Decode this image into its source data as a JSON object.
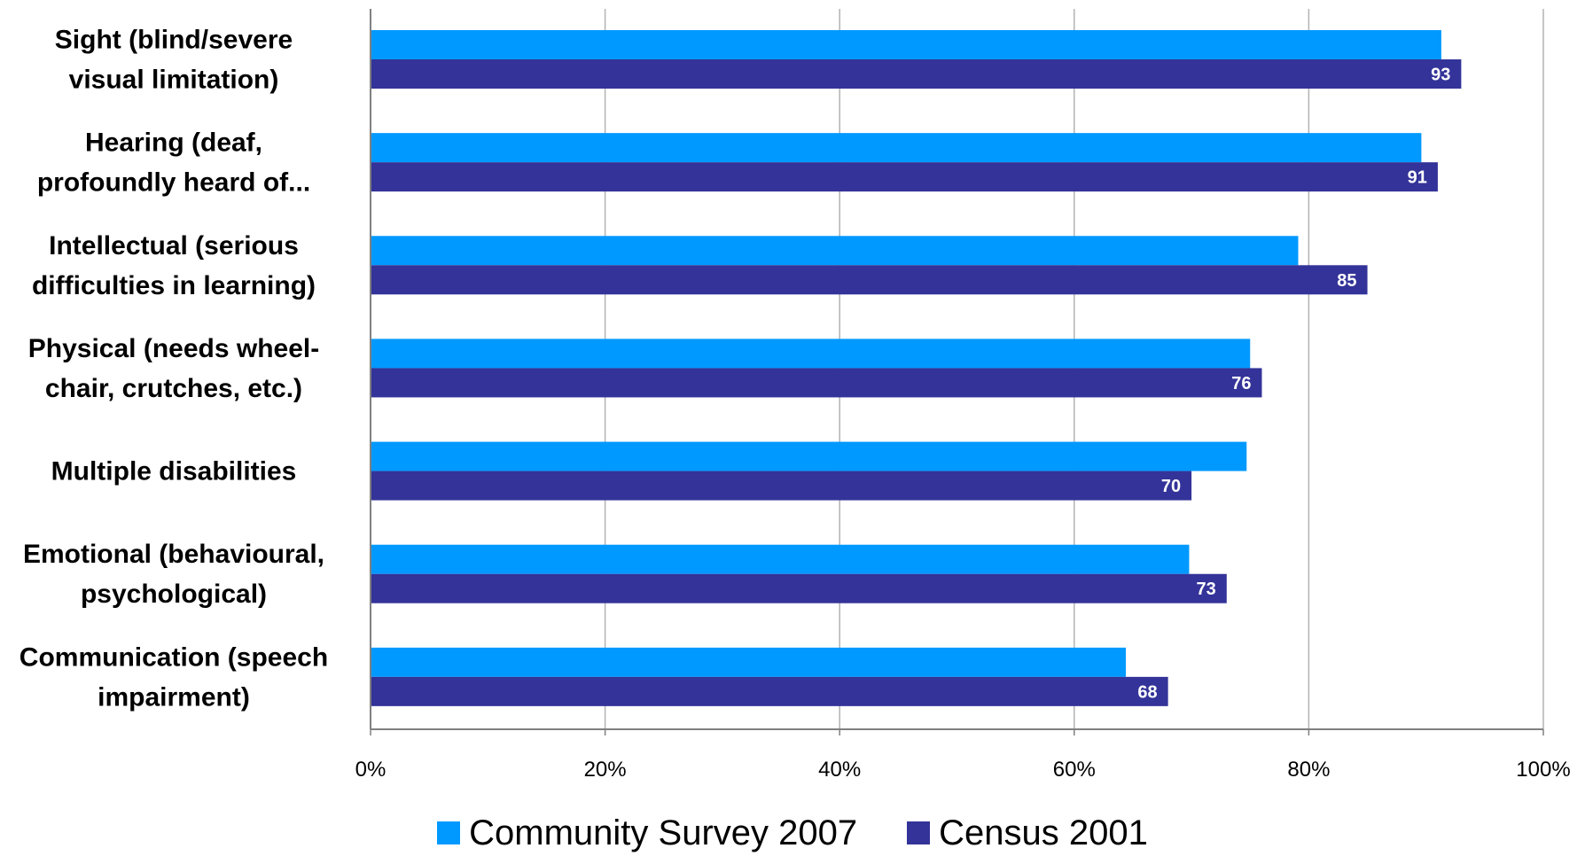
{
  "chart_data": {
    "type": "bar",
    "orientation": "horizontal",
    "categories": [
      [
        "Sight (blind/severe",
        "visual limitation)"
      ],
      [
        "Hearing (deaf,",
        "profoundly heard of..."
      ],
      [
        "Intellectual (serious",
        "difficulties in learning)"
      ],
      [
        "Physical (needs wheel-",
        "chair, crutches, etc.)"
      ],
      [
        "Multiple disabilities"
      ],
      [
        "Emotional (behavioural,",
        "psychological)"
      ],
      [
        "Communication (speech",
        "impairment)"
      ]
    ],
    "series": [
      {
        "name": "Community Survey 2007",
        "color": "#0099ff",
        "values": [
          91.3,
          89.6,
          79.1,
          75.0,
          74.7,
          69.8,
          64.4
        ],
        "show_labels": false
      },
      {
        "name": "Census 2001",
        "color": "#333399",
        "values": [
          93,
          91,
          85,
          76,
          70,
          73,
          68
        ],
        "show_labels": true
      }
    ],
    "xlim": [
      0,
      100
    ],
    "xticks": [
      "0%",
      "20%",
      "40%",
      "60%",
      "80%",
      "100%"
    ],
    "grid": true,
    "legend_position": "bottom"
  },
  "legend": {
    "items": [
      {
        "label": "Community Survey 2007",
        "color": "#0099ff"
      },
      {
        "label": "Census 2001",
        "color": "#333399"
      }
    ]
  }
}
